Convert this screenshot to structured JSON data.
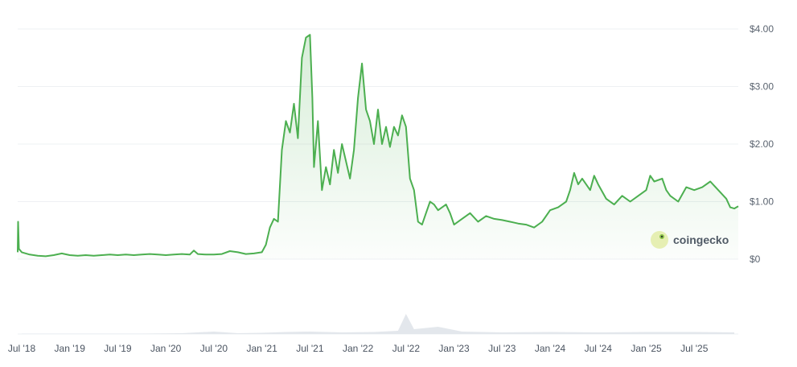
{
  "chart_data": {
    "type": "area",
    "x_tick_labels": [
      "Jul '18",
      "Jan '19",
      "Jul '19",
      "Jan '20",
      "Jul '20",
      "Jan '21",
      "Jul '21",
      "Jan '22",
      "Jul '22",
      "Jan '23",
      "Jul '23",
      "Jan '24",
      "Jul '24",
      "Jan '25",
      "Jul '25"
    ],
    "x_tick_months": [
      0,
      6,
      12,
      18,
      24,
      30,
      36,
      42,
      48,
      54,
      60,
      66,
      72,
      78,
      84
    ],
    "x_range_months": [
      -0.5,
      89.5
    ],
    "y_tick_labels": [
      "$0",
      "$1.00",
      "$2.00",
      "$3.00",
      "$4.00"
    ],
    "y_tick_values": [
      0,
      1,
      2,
      3,
      4
    ],
    "ylim": [
      0,
      4
    ],
    "series": [
      {
        "color": "#4caf50",
        "points": [
          [
            -0.5,
            0.12
          ],
          [
            -0.45,
            0.65
          ],
          [
            -0.35,
            0.18
          ],
          [
            0,
            0.12
          ],
          [
            1,
            0.08
          ],
          [
            2,
            0.06
          ],
          [
            3,
            0.05
          ],
          [
            4,
            0.07
          ],
          [
            5,
            0.1
          ],
          [
            6,
            0.07
          ],
          [
            7,
            0.06
          ],
          [
            8,
            0.07
          ],
          [
            9,
            0.06
          ],
          [
            10,
            0.07
          ],
          [
            11,
            0.08
          ],
          [
            12,
            0.07
          ],
          [
            13,
            0.08
          ],
          [
            14,
            0.07
          ],
          [
            15,
            0.08
          ],
          [
            16,
            0.09
          ],
          [
            17,
            0.08
          ],
          [
            18,
            0.07
          ],
          [
            19,
            0.08
          ],
          [
            20,
            0.09
          ],
          [
            21,
            0.08
          ],
          [
            21.5,
            0.15
          ],
          [
            22,
            0.09
          ],
          [
            23,
            0.08
          ],
          [
            24,
            0.08
          ],
          [
            25,
            0.09
          ],
          [
            26,
            0.14
          ],
          [
            27,
            0.12
          ],
          [
            28,
            0.09
          ],
          [
            29,
            0.1
          ],
          [
            30,
            0.12
          ],
          [
            30.5,
            0.25
          ],
          [
            31,
            0.55
          ],
          [
            31.5,
            0.7
          ],
          [
            32,
            0.65
          ],
          [
            32.5,
            1.9
          ],
          [
            33,
            2.4
          ],
          [
            33.5,
            2.2
          ],
          [
            34,
            2.7
          ],
          [
            34.5,
            2.1
          ],
          [
            35,
            3.5
          ],
          [
            35.5,
            3.85
          ],
          [
            36,
            3.9
          ],
          [
            36.3,
            2.8
          ],
          [
            36.5,
            1.6
          ],
          [
            37,
            2.4
          ],
          [
            37.5,
            1.2
          ],
          [
            38,
            1.6
          ],
          [
            38.5,
            1.3
          ],
          [
            39,
            1.9
          ],
          [
            39.5,
            1.5
          ],
          [
            40,
            2.0
          ],
          [
            40.5,
            1.7
          ],
          [
            41,
            1.4
          ],
          [
            41.5,
            1.9
          ],
          [
            42,
            2.8
          ],
          [
            42.5,
            3.4
          ],
          [
            43,
            2.6
          ],
          [
            43.5,
            2.4
          ],
          [
            44,
            2.0
          ],
          [
            44.5,
            2.6
          ],
          [
            45,
            2.0
          ],
          [
            45.5,
            2.3
          ],
          [
            46,
            1.95
          ],
          [
            46.5,
            2.3
          ],
          [
            47,
            2.15
          ],
          [
            47.5,
            2.5
          ],
          [
            48,
            2.3
          ],
          [
            48.5,
            1.4
          ],
          [
            49,
            1.2
          ],
          [
            49.5,
            0.65
          ],
          [
            50,
            0.6
          ],
          [
            50.5,
            0.8
          ],
          [
            51,
            1.0
          ],
          [
            51.5,
            0.95
          ],
          [
            52,
            0.85
          ],
          [
            53,
            0.95
          ],
          [
            53.5,
            0.8
          ],
          [
            54,
            0.6
          ],
          [
            55,
            0.7
          ],
          [
            56,
            0.8
          ],
          [
            57,
            0.65
          ],
          [
            58,
            0.75
          ],
          [
            59,
            0.7
          ],
          [
            60,
            0.68
          ],
          [
            61,
            0.65
          ],
          [
            62,
            0.62
          ],
          [
            63,
            0.6
          ],
          [
            64,
            0.55
          ],
          [
            65,
            0.65
          ],
          [
            66,
            0.85
          ],
          [
            67,
            0.9
          ],
          [
            68,
            1.0
          ],
          [
            68.5,
            1.2
          ],
          [
            69,
            1.5
          ],
          [
            69.5,
            1.3
          ],
          [
            70,
            1.4
          ],
          [
            71,
            1.2
          ],
          [
            71.5,
            1.45
          ],
          [
            72,
            1.3
          ],
          [
            73,
            1.05
          ],
          [
            74,
            0.95
          ],
          [
            75,
            1.1
          ],
          [
            76,
            1.0
          ],
          [
            77,
            1.1
          ],
          [
            78,
            1.2
          ],
          [
            78.5,
            1.45
          ],
          [
            79,
            1.35
          ],
          [
            80,
            1.4
          ],
          [
            80.5,
            1.2
          ],
          [
            81,
            1.1
          ],
          [
            82,
            1.0
          ],
          [
            83,
            1.25
          ],
          [
            84,
            1.2
          ],
          [
            85,
            1.25
          ],
          [
            86,
            1.35
          ],
          [
            87,
            1.2
          ],
          [
            88,
            1.05
          ],
          [
            88.5,
            0.9
          ],
          [
            89,
            0.88
          ],
          [
            89.5,
            0.92
          ]
        ]
      }
    ],
    "volume": {
      "color": "#e3e7ec",
      "points": [
        [
          0,
          0.01
        ],
        [
          5,
          0.01
        ],
        [
          10,
          0.01
        ],
        [
          15,
          0.01
        ],
        [
          20,
          0.02
        ],
        [
          24,
          0.06
        ],
        [
          27,
          0.02
        ],
        [
          30,
          0.03
        ],
        [
          33,
          0.05
        ],
        [
          36,
          0.06
        ],
        [
          40,
          0.04
        ],
        [
          44,
          0.05
        ],
        [
          47,
          0.08
        ],
        [
          48,
          0.5
        ],
        [
          49,
          0.12
        ],
        [
          52,
          0.18
        ],
        [
          55,
          0.06
        ],
        [
          60,
          0.04
        ],
        [
          66,
          0.05
        ],
        [
          72,
          0.04
        ],
        [
          78,
          0.05
        ],
        [
          84,
          0.05
        ],
        [
          89,
          0.04
        ]
      ]
    },
    "grid": true,
    "legend": "none"
  },
  "watermark": {
    "text": "coingecko",
    "logo": "coingecko-gecko-icon"
  }
}
